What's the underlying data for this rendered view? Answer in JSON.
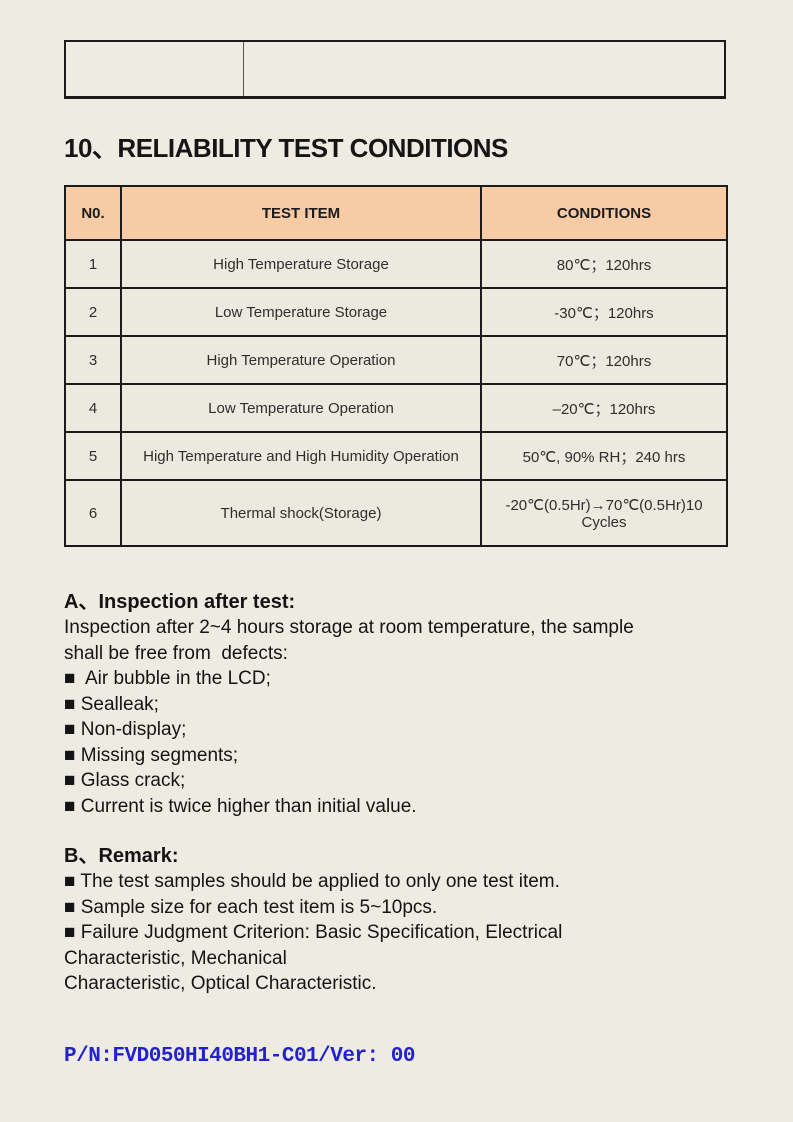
{
  "colors": {
    "paper": "#eeebe2",
    "table_header_bg": "#f7cba5",
    "table_border": "#1b1b1b",
    "footer_blue": "#2222cc"
  },
  "header_box": {
    "left_cell": "",
    "right_cell": ""
  },
  "title": "10、RELIABILITY TEST CONDITIONS",
  "table": {
    "headers": [
      "N0.",
      "TEST ITEM",
      "CONDITIONS"
    ],
    "rows": [
      {
        "no": "1",
        "item": "High Temperature Storage",
        "conditions": "80℃；120hrs"
      },
      {
        "no": "2",
        "item": "Low Temperature Storage",
        "conditions": "-30℃；120hrs"
      },
      {
        "no": "3",
        "item": "High Temperature Operation",
        "conditions": "70℃；120hrs"
      },
      {
        "no": "4",
        "item": "Low Temperature Operation",
        "conditions": "–20℃；120hrs"
      },
      {
        "no": "5",
        "item": "High Temperature and High Humidity Operation",
        "conditions": "50℃, 90% RH；240 hrs"
      },
      {
        "no": "6",
        "item": "Thermal shock(Storage)",
        "conditions": "-20℃(0.5Hr)→70℃(0.5Hr)10 Cycles"
      }
    ]
  },
  "section_a": {
    "heading": "A、Inspection after test:",
    "intro_lines": [
      "Inspection after 2~4 hours storage at room temperature, the sample",
      "shall be free from  defects:"
    ],
    "bullets": [
      "■  Air bubble in the LCD;",
      "■ Sealleak;",
      "■ Non-display;",
      "■ Missing segments;",
      "■ Glass crack;",
      "■ Current is twice higher than initial value."
    ]
  },
  "section_b": {
    "heading": "B、Remark:",
    "bullets": [
      "■ The test samples should be applied to only one test item.",
      "■ Sample size for each test item is 5~10pcs.",
      "■ Failure Judgment Criterion: Basic Specification, Electrical"
    ],
    "continuation_lines": [
      "Characteristic, Mechanical",
      "Characteristic, Optical Characteristic."
    ]
  },
  "footer": "P/N:FVD050HI40BH1-C01/Ver: 00"
}
